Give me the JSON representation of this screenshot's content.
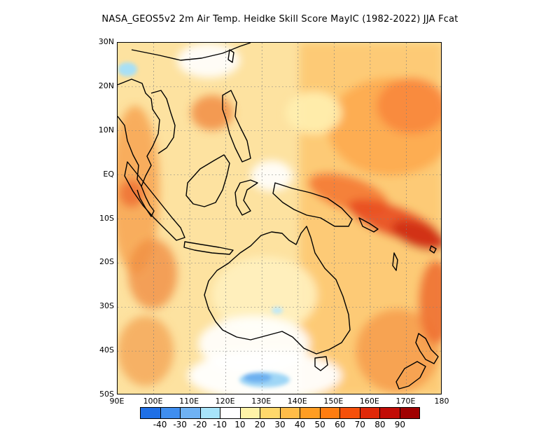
{
  "title": "NASA_GEOS5v2  2m Air Temp. Heidke Skill Score MayIC (1982-2022) JJA Fcat",
  "map": {
    "region": "Maritime Continent and Australia",
    "lon_range": [
      90,
      180
    ],
    "lat_range": [
      -50,
      30
    ],
    "lat_labels": [
      "30N",
      "20N",
      "10N",
      "EQ",
      "10S",
      "20S",
      "30S",
      "40S",
      "50S"
    ],
    "lat_values": [
      30,
      20,
      10,
      0,
      -10,
      -20,
      -30,
      -40,
      -50
    ],
    "lon_labels": [
      "90E",
      "100E",
      "110E",
      "120E",
      "130E",
      "140E",
      "150E",
      "160E",
      "170E",
      "180"
    ],
    "lon_values": [
      90,
      100,
      110,
      120,
      130,
      140,
      150,
      160,
      170,
      180
    ],
    "gridlines": "dotted",
    "coastline_color": "#000000"
  },
  "colorbar": {
    "colors": [
      "#1e6fe6",
      "#3f8ef0",
      "#6fb2f4",
      "#a8e4fa",
      "#ffffff",
      "#fff3a8",
      "#ffd86b",
      "#ffbc48",
      "#ff9d22",
      "#ff7d10",
      "#f6500a",
      "#e02808",
      "#c20c06",
      "#a00000"
    ],
    "labels": [
      "-40",
      "-30",
      "-20",
      "-10",
      "10",
      "20",
      "30",
      "40",
      "50",
      "60",
      "70",
      "80",
      "90"
    ]
  }
}
